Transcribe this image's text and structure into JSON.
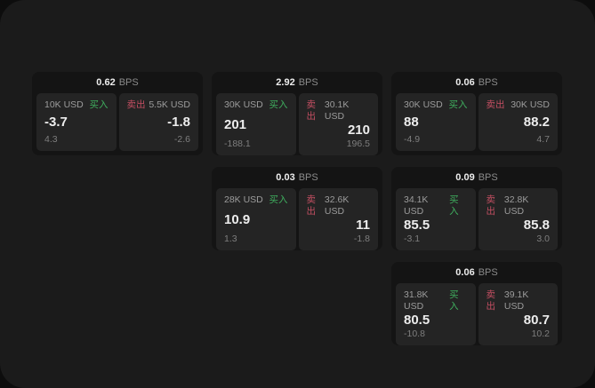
{
  "colors": {
    "canvas_bg": "#0d0d0d",
    "page_bg": "#1b1b1b",
    "card_bg": "#141414",
    "panel_bg": "#242424",
    "buy_color": "#3fae5e",
    "sell_color": "#c44f62",
    "text_primary": "#ededed",
    "text_muted": "#8b8b8b",
    "text_size": "#9c9c9c",
    "text_sub": "#7e7e7e"
  },
  "labels": {
    "buy": "买入",
    "sell": "卖出",
    "bps_unit": "BPS"
  },
  "cards": [
    {
      "row": 1,
      "col": 1,
      "bps": "0.62",
      "buy": {
        "size": "10K USD",
        "value": "-3.7",
        "sub": "4.3"
      },
      "sell": {
        "size": "5.5K USD",
        "value": "-1.8",
        "sub": "-2.6"
      }
    },
    {
      "row": 1,
      "col": 2,
      "bps": "2.92",
      "buy": {
        "size": "30K USD",
        "value": "201",
        "sub": "-188.1"
      },
      "sell": {
        "size": "30.1K USD",
        "value": "210",
        "sub": "196.5"
      }
    },
    {
      "row": 1,
      "col": 3,
      "bps": "0.06",
      "buy": {
        "size": "30K USD",
        "value": "88",
        "sub": "-4.9"
      },
      "sell": {
        "size": "30K USD",
        "value": "88.2",
        "sub": "4.7"
      }
    },
    {
      "row": 2,
      "col": 2,
      "bps": "0.03",
      "buy": {
        "size": "28K USD",
        "value": "10.9",
        "sub": "1.3"
      },
      "sell": {
        "size": "32.6K USD",
        "value": "11",
        "sub": "-1.8"
      }
    },
    {
      "row": 2,
      "col": 3,
      "bps": "0.09",
      "buy": {
        "size": "34.1K USD",
        "value": "85.5",
        "sub": "-3.1"
      },
      "sell": {
        "size": "32.8K USD",
        "value": "85.8",
        "sub": "3.0"
      }
    },
    {
      "row": 3,
      "col": 3,
      "bps": "0.06",
      "buy": {
        "size": "31.8K USD",
        "value": "80.5",
        "sub": "-10.8"
      },
      "sell": {
        "size": "39.1K USD",
        "value": "80.7",
        "sub": "10.2"
      }
    }
  ]
}
